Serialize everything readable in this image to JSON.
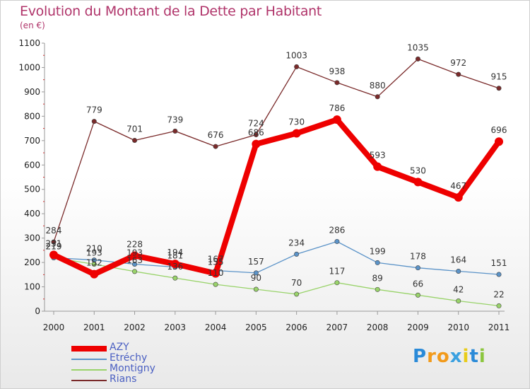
{
  "title": "Evolution du Montant de la Dette par Habitant",
  "subtitle": "(en €)",
  "brand": {
    "text": "Proxiti",
    "letters": [
      "P",
      "r",
      "o",
      "x",
      "i",
      "t",
      "i"
    ],
    "colors": [
      "#2a8ad8",
      "#f29a1a",
      "#f29a1a",
      "#3aa0e0",
      "#e8cc1a",
      "#2a8ad8",
      "#8cc63e"
    ]
  },
  "chart_data": {
    "type": "line",
    "title": "Evolution du Montant de la Dette par Habitant",
    "subtitle": "(en €)",
    "xlabel": "",
    "ylabel": "",
    "categories": [
      "2000",
      "2001",
      "2002",
      "2003",
      "2004",
      "2005",
      "2006",
      "2007",
      "2008",
      "2009",
      "2010",
      "2011"
    ],
    "yticks": [
      "0",
      "100",
      "200",
      "300",
      "400",
      "500",
      "600",
      "700",
      "800",
      "900",
      "1000",
      "1100"
    ],
    "ylim": [
      0,
      1100
    ],
    "grid": false,
    "legend_position": "bottom-left",
    "series": [
      {
        "name": "AZY",
        "color": "#ee0000",
        "values": [
          231,
          152,
          228,
          194,
          155,
          686,
          730,
          786,
          593,
          530,
          467,
          696
        ],
        "labels": [
          "231",
          "152",
          "228",
          "194",
          "155",
          "686",
          "730",
          "786",
          "593",
          "530",
          "467",
          "696"
        ]
      },
      {
        "name": "Etréchy",
        "color": "#5b93c8",
        "values": [
          219,
          210,
          193,
          181,
          167,
          157,
          234,
          286,
          199,
          178,
          164,
          151
        ],
        "labels": [
          "219",
          "210",
          "193",
          "181",
          "167",
          "157",
          "234",
          "286",
          "199",
          "178",
          "164",
          "151"
        ]
      },
      {
        "name": "Montigny",
        "color": "#99d36a",
        "values": [
          219,
          193,
          163,
          136,
          110,
          90,
          70,
          117,
          89,
          66,
          42,
          22
        ],
        "labels": [
          "219",
          "193",
          "163",
          "136",
          "110",
          "90",
          "70",
          "117",
          "89",
          "66",
          "42",
          "22"
        ]
      },
      {
        "name": "Rians",
        "color": "#7a2a2a",
        "values": [
          284,
          779,
          701,
          739,
          676,
          724,
          1003,
          938,
          880,
          1035,
          972,
          915
        ],
        "labels": [
          "284",
          "779",
          "701",
          "739",
          "676",
          "724",
          "1003",
          "938",
          "880",
          "1035",
          "972",
          "915"
        ]
      }
    ]
  }
}
